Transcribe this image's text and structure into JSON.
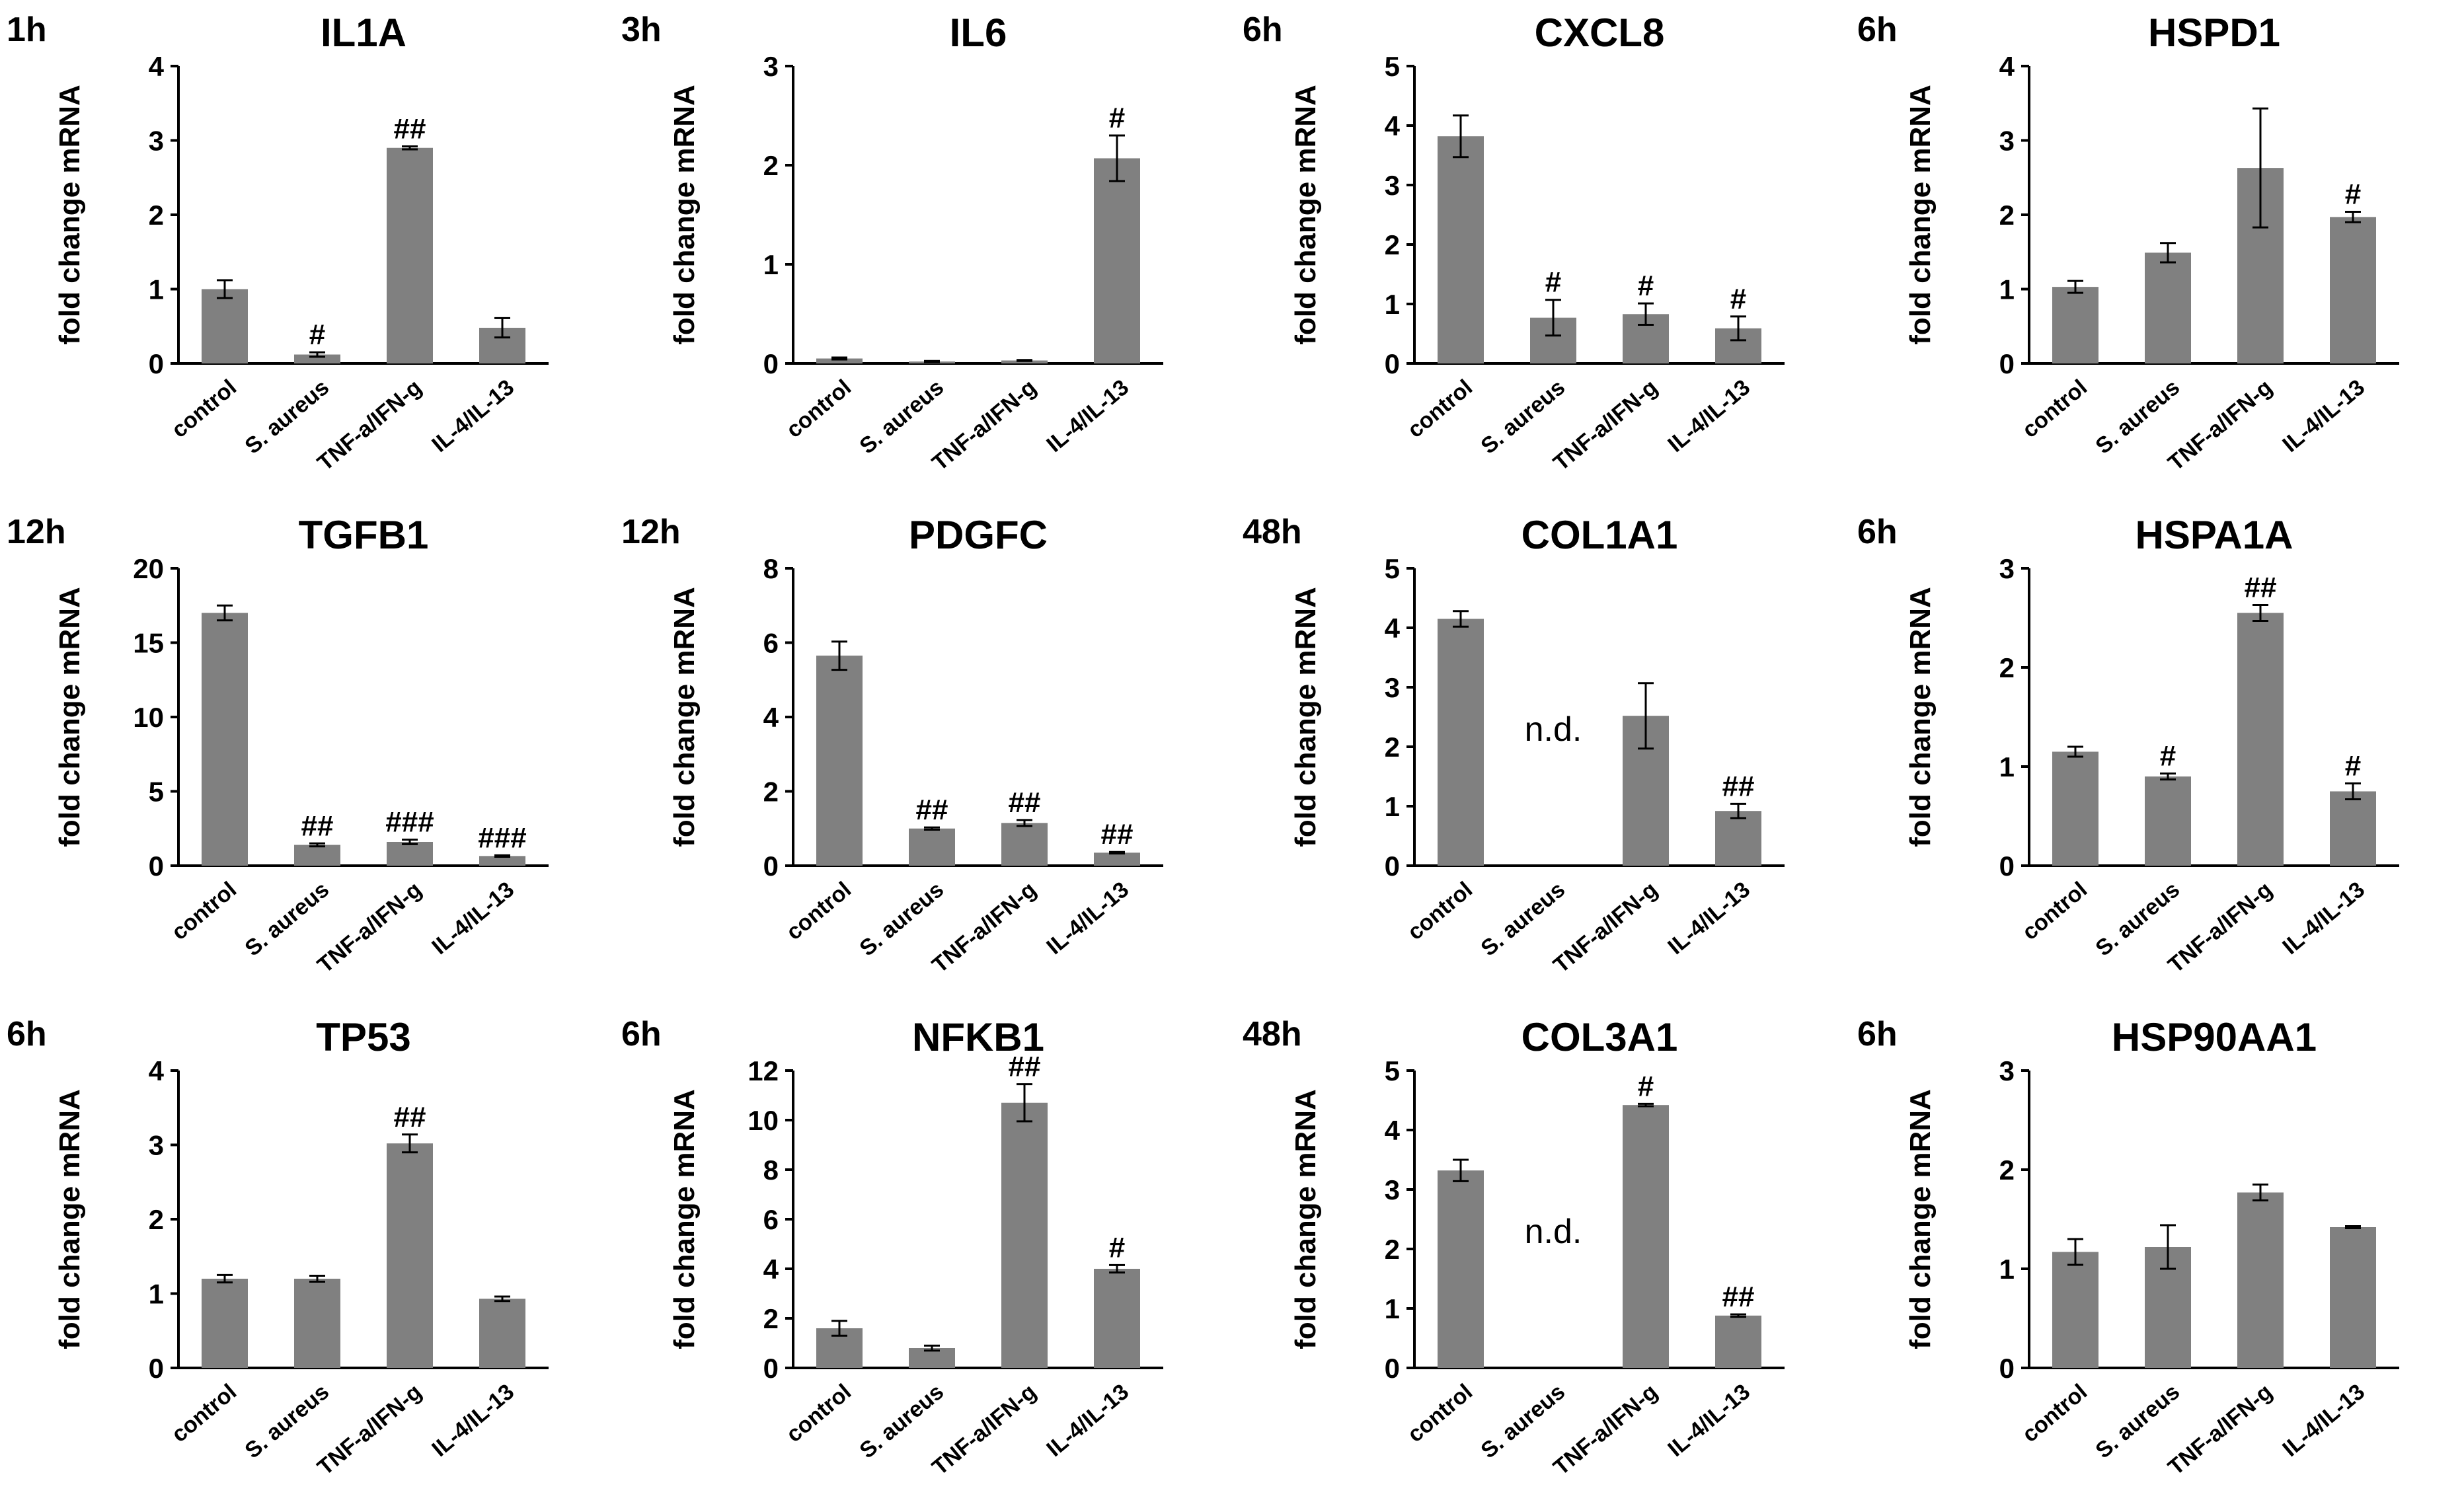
{
  "figure": {
    "y_axis_label": "fold change mRNA",
    "categories": [
      "control",
      "S. aureus",
      "TNF-a/IFN-g",
      "IL-4/IL-13"
    ],
    "bar_color": "#808080",
    "na_label": "n.d."
  },
  "chart_data": [
    {
      "type": "bar",
      "title": "IL1A",
      "timepoint": "1h",
      "ylabel": "fold change mRNA",
      "categories": [
        "control",
        "S. aureus",
        "TNF-a/IFN-g",
        "IL-4/IL-13"
      ],
      "ylim": [
        0,
        4
      ],
      "yticks": [
        0,
        1,
        2,
        3,
        4
      ],
      "values": [
        1.0,
        0.12,
        2.9,
        0.48
      ],
      "errors": [
        0.12,
        0.03,
        0.02,
        0.13
      ],
      "marks": [
        "",
        "#",
        "##",
        ""
      ]
    },
    {
      "type": "bar",
      "title": "IL6",
      "timepoint": "3h",
      "ylabel": "fold change mRNA",
      "categories": [
        "control",
        "S. aureus",
        "TNF-a/IFN-g",
        "IL-4/IL-13"
      ],
      "ylim": [
        0,
        3
      ],
      "yticks": [
        0,
        1,
        2,
        3
      ],
      "values": [
        0.05,
        0.02,
        0.03,
        2.07
      ],
      "errors": [
        0.01,
        0.005,
        0.005,
        0.23
      ],
      "marks": [
        "",
        "",
        "",
        "#"
      ]
    },
    {
      "type": "bar",
      "title": "CXCL8",
      "timepoint": "6h",
      "ylabel": "fold change mRNA",
      "categories": [
        "control",
        "S. aureus",
        "TNF-a/IFN-g",
        "IL-4/IL-13"
      ],
      "ylim": [
        0,
        5
      ],
      "yticks": [
        0,
        1,
        2,
        3,
        4,
        5
      ],
      "values": [
        3.82,
        0.77,
        0.83,
        0.59
      ],
      "errors": [
        0.35,
        0.3,
        0.18,
        0.2
      ],
      "marks": [
        "",
        "#",
        "#",
        "#"
      ]
    },
    {
      "type": "bar",
      "title": "HSPD1",
      "timepoint": "6h",
      "ylabel": "fold change mRNA",
      "categories": [
        "control",
        "S. aureus",
        "TNF-a/IFN-g",
        "IL-4/IL-13"
      ],
      "ylim": [
        0,
        4
      ],
      "yticks": [
        0,
        1,
        2,
        3,
        4
      ],
      "values": [
        1.03,
        1.49,
        2.63,
        1.97
      ],
      "errors": [
        0.08,
        0.13,
        0.8,
        0.07
      ],
      "marks": [
        "",
        "",
        "",
        "#"
      ]
    },
    {
      "type": "bar",
      "title": "TGFB1",
      "timepoint": "12h",
      "ylabel": "fold change mRNA",
      "categories": [
        "control",
        "S. aureus",
        "TNF-a/IFN-g",
        "IL-4/IL-13"
      ],
      "ylim": [
        0,
        20
      ],
      "yticks": [
        0,
        5,
        10,
        15,
        20
      ],
      "values": [
        17.0,
        1.4,
        1.6,
        0.65
      ],
      "errors": [
        0.5,
        0.1,
        0.15,
        0.05
      ],
      "marks": [
        "",
        "##",
        "###",
        "###"
      ]
    },
    {
      "type": "bar",
      "title": "PDGFC",
      "timepoint": "12h",
      "ylabel": "fold change mRNA",
      "categories": [
        "control",
        "S. aureus",
        "TNF-a/IFN-g",
        "IL-4/IL-13"
      ],
      "ylim": [
        0,
        8
      ],
      "yticks": [
        0,
        2,
        4,
        6,
        8
      ],
      "values": [
        5.65,
        1.0,
        1.15,
        0.35
      ],
      "errors": [
        0.38,
        0.03,
        0.08,
        0.02
      ],
      "marks": [
        "",
        "##",
        "##",
        "##"
      ]
    },
    {
      "type": "bar",
      "title": "COL1A1",
      "timepoint": "48h",
      "ylabel": "fold change mRNA",
      "categories": [
        "control",
        "S. aureus",
        "TNF-a/IFN-g",
        "IL-4/IL-13"
      ],
      "ylim": [
        0,
        5
      ],
      "yticks": [
        0,
        1,
        2,
        3,
        4,
        5
      ],
      "values": [
        4.15,
        null,
        2.52,
        0.92
      ],
      "errors": [
        0.13,
        0,
        0.55,
        0.12
      ],
      "marks": [
        "",
        "",
        "",
        "##"
      ],
      "nd_label_index": 1
    },
    {
      "type": "bar",
      "title": "HSPA1A",
      "timepoint": "6h",
      "ylabel": "fold change mRNA",
      "categories": [
        "control",
        "S. aureus",
        "TNF-a/IFN-g",
        "IL-4/IL-13"
      ],
      "ylim": [
        0,
        3
      ],
      "yticks": [
        0,
        1,
        2,
        3
      ],
      "values": [
        1.15,
        0.9,
        2.55,
        0.75
      ],
      "errors": [
        0.05,
        0.03,
        0.08,
        0.08
      ],
      "marks": [
        "",
        "#",
        "##",
        "#"
      ]
    },
    {
      "type": "bar",
      "title": "TP53",
      "timepoint": "6h",
      "ylabel": "fold change mRNA",
      "categories": [
        "control",
        "S. aureus",
        "TNF-a/IFN-g",
        "IL-4/IL-13"
      ],
      "ylim": [
        0,
        4
      ],
      "yticks": [
        0,
        1,
        2,
        3,
        4
      ],
      "values": [
        1.2,
        1.2,
        3.02,
        0.93
      ],
      "errors": [
        0.05,
        0.04,
        0.12,
        0.03
      ],
      "marks": [
        "",
        "",
        "##",
        ""
      ]
    },
    {
      "type": "bar",
      "title": "NFKB1",
      "timepoint": "6h",
      "ylabel": "fold change mRNA",
      "categories": [
        "control",
        "S. aureus",
        "TNF-a/IFN-g",
        "IL-4/IL-13"
      ],
      "ylim": [
        0,
        12
      ],
      "yticks": [
        0,
        2,
        4,
        6,
        8,
        10,
        12
      ],
      "values": [
        1.6,
        0.8,
        10.7,
        4.0
      ],
      "errors": [
        0.3,
        0.1,
        0.75,
        0.15
      ],
      "marks": [
        "",
        "",
        "##",
        "#"
      ]
    },
    {
      "type": "bar",
      "title": "COL3A1",
      "timepoint": "48h",
      "ylabel": "fold change mRNA",
      "categories": [
        "control",
        "S. aureus",
        "TNF-a/IFN-g",
        "IL-4/IL-13"
      ],
      "ylim": [
        0,
        5
      ],
      "yticks": [
        0,
        1,
        2,
        3,
        4,
        5
      ],
      "values": [
        3.32,
        null,
        4.42,
        0.88
      ],
      "errors": [
        0.18,
        0,
        0.02,
        0.02
      ],
      "marks": [
        "",
        "",
        "#",
        "##"
      ],
      "nd_label_index": 1
    },
    {
      "type": "bar",
      "title": "HSP90AA1",
      "timepoint": "6h",
      "ylabel": "fold change mRNA",
      "categories": [
        "control",
        "S. aureus",
        "TNF-a/IFN-g",
        "IL-4/IL-13"
      ],
      "ylim": [
        0,
        3
      ],
      "yticks": [
        0,
        1,
        2,
        3
      ],
      "values": [
        1.17,
        1.22,
        1.77,
        1.42
      ],
      "errors": [
        0.13,
        0.22,
        0.08,
        0.01
      ],
      "marks": [
        "",
        "",
        "",
        ""
      ]
    }
  ]
}
